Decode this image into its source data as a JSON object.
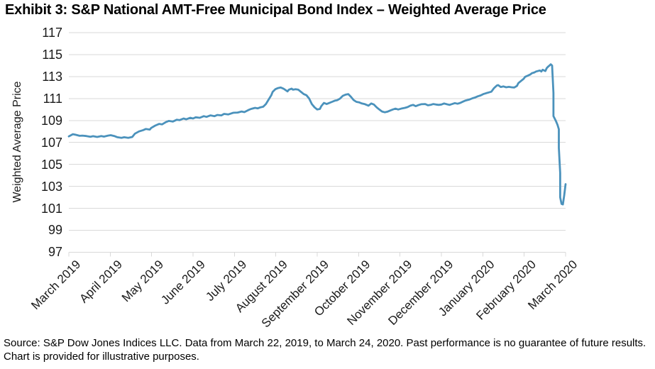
{
  "title": "Exhibit 3: S&P National AMT-Free Municipal Bond Index – Weighted Average Price",
  "footer": "Source: S&P Dow Jones Indices LLC. Data from March 22, 2019, to March 24, 2020. Past performance is no guarantee of future results. Chart is provided for illustrative purposes.",
  "chart_data": {
    "type": "line",
    "title": "Exhibit 3: S&P National AMT-Free Municipal Bond Index – Weighted Average Price",
    "xlabel": "",
    "ylabel": "Weighted Average Price",
    "ylim": [
      97,
      117
    ],
    "yticks": [
      117,
      115,
      113,
      111,
      109,
      107,
      105,
      103,
      101,
      99,
      97
    ],
    "x_tick_labels": [
      "March 2019",
      "April 2019",
      "May 2019",
      "June 2019",
      "July 2019",
      "August 2019",
      "September 2019",
      "October 2019",
      "November 2019",
      "December 2019",
      "January 2020",
      "February 2020",
      "March 2020"
    ],
    "grid": "horizontal-only",
    "legend": "none",
    "line_color": "#4B92BC",
    "grid_color": "#D9D9D9",
    "series": [
      {
        "name": "weighted_average_price",
        "dates": [
          "2019-03-22",
          "2019-03-25",
          "2019-03-27",
          "2019-03-30",
          "2019-04-01",
          "2019-04-04",
          "2019-04-07",
          "2019-04-09",
          "2019-04-12",
          "2019-04-15",
          "2019-04-17",
          "2019-04-20",
          "2019-04-22",
          "2019-04-25",
          "2019-04-27",
          "2019-04-30",
          "2019-05-02",
          "2019-05-05",
          "2019-05-08",
          "2019-05-10",
          "2019-05-13",
          "2019-05-16",
          "2019-05-18",
          "2019-05-21",
          "2019-05-22",
          "2019-05-25",
          "2019-05-28",
          "2019-05-30",
          "2019-06-02",
          "2019-06-04",
          "2019-06-07",
          "2019-06-10",
          "2019-06-12",
          "2019-06-15",
          "2019-06-17",
          "2019-06-20",
          "2019-06-22",
          "2019-06-24",
          "2019-06-27",
          "2019-06-30",
          "2019-07-02",
          "2019-07-05",
          "2019-07-08",
          "2019-07-10",
          "2019-07-13",
          "2019-07-15",
          "2019-07-18",
          "2019-07-21",
          "2019-07-22",
          "2019-07-25",
          "2019-07-28",
          "2019-07-30",
          "2019-08-02",
          "2019-08-04",
          "2019-08-07",
          "2019-08-09",
          "2019-08-11",
          "2019-08-13",
          "2019-08-15",
          "2019-08-17",
          "2019-08-19",
          "2019-08-20",
          "2019-08-22",
          "2019-08-24",
          "2019-08-26",
          "2019-08-28",
          "2019-08-31",
          "2019-09-01",
          "2019-09-03",
          "2019-09-04",
          "2019-09-06",
          "2019-09-08",
          "2019-09-10",
          "2019-09-12",
          "2019-09-14",
          "2019-09-16",
          "2019-09-18",
          "2019-09-20",
          "2019-09-22",
          "2019-09-24",
          "2019-09-25",
          "2019-09-27",
          "2019-09-29",
          "2019-09-30",
          "2019-10-03",
          "2019-10-05",
          "2019-10-07",
          "2019-10-09",
          "2019-10-11",
          "2019-10-13",
          "2019-10-15",
          "2019-10-17",
          "2019-10-19",
          "2019-10-21",
          "2019-10-23",
          "2019-10-25",
          "2019-10-27",
          "2019-10-30",
          "2019-11-01",
          "2019-11-03",
          "2019-11-05",
          "2019-11-07",
          "2019-11-09",
          "2019-11-11",
          "2019-11-13",
          "2019-11-15",
          "2019-11-17",
          "2019-11-19",
          "2019-11-21",
          "2019-11-24",
          "2019-11-26",
          "2019-11-28",
          "2019-11-30",
          "2019-12-02",
          "2019-12-04",
          "2019-12-06",
          "2019-12-08",
          "2019-12-11",
          "2019-12-13",
          "2019-12-15",
          "2019-12-17",
          "2019-12-19",
          "2019-12-21",
          "2019-12-23",
          "2019-12-25",
          "2019-12-27",
          "2019-12-29",
          "2019-12-31",
          "2020-01-02",
          "2020-01-04",
          "2020-01-06",
          "2020-01-08",
          "2020-01-10",
          "2020-01-13",
          "2020-01-15",
          "2020-01-17",
          "2020-01-19",
          "2020-01-21",
          "2020-01-23",
          "2020-01-25",
          "2020-01-27",
          "2020-01-29",
          "2020-01-31",
          "2020-02-02",
          "2020-02-03",
          "2020-02-05",
          "2020-02-07",
          "2020-02-09",
          "2020-02-11",
          "2020-02-13",
          "2020-02-15",
          "2020-02-17",
          "2020-02-18",
          "2020-02-20",
          "2020-02-22",
          "2020-02-23",
          "2020-02-25",
          "2020-02-27",
          "2020-02-28",
          "2020-03-01",
          "2020-03-02",
          "2020-03-04",
          "2020-03-05",
          "2020-03-06",
          "2020-03-07",
          "2020-03-09",
          "2020-03-10",
          "2020-03-11",
          "2020-03-12",
          "2020-03-13",
          "2020-03-14",
          "2020-03-15",
          "2020-03-15",
          "2020-03-16",
          "2020-03-17",
          "2020-03-18",
          "2020-03-19",
          "2020-03-19",
          "2020-03-20",
          "2020-03-20",
          "2020-03-21",
          "2020-03-22",
          "2020-03-23",
          "2020-03-24"
        ],
        "values": [
          107.55,
          107.75,
          107.7,
          107.6,
          107.62,
          107.58,
          107.52,
          107.57,
          107.5,
          107.58,
          107.53,
          107.62,
          107.66,
          107.57,
          107.47,
          107.42,
          107.47,
          107.42,
          107.5,
          107.8,
          108.0,
          108.12,
          108.22,
          108.17,
          108.32,
          108.53,
          108.69,
          108.64,
          108.86,
          108.96,
          108.9,
          109.07,
          109.03,
          109.18,
          109.11,
          109.24,
          109.18,
          109.29,
          109.24,
          109.39,
          109.33,
          109.46,
          109.39,
          109.5,
          109.46,
          109.6,
          109.55,
          109.67,
          109.7,
          109.72,
          109.82,
          109.76,
          109.95,
          110.05,
          110.15,
          110.1,
          110.2,
          110.25,
          110.5,
          110.9,
          111.3,
          111.6,
          111.85,
          111.95,
          112.0,
          111.9,
          111.65,
          111.8,
          111.9,
          111.8,
          111.85,
          111.8,
          111.6,
          111.4,
          111.3,
          111.0,
          110.5,
          110.2,
          110.0,
          110.05,
          110.3,
          110.6,
          110.5,
          110.55,
          110.7,
          110.8,
          110.85,
          111.0,
          111.25,
          111.35,
          111.4,
          111.15,
          110.85,
          110.7,
          110.65,
          110.55,
          110.5,
          110.35,
          110.55,
          110.45,
          110.2,
          110.0,
          109.82,
          109.75,
          109.8,
          109.9,
          110.0,
          110.08,
          110.0,
          110.1,
          110.15,
          110.22,
          110.35,
          110.42,
          110.3,
          110.4,
          110.48,
          110.5,
          110.38,
          110.42,
          110.5,
          110.45,
          110.42,
          110.45,
          110.55,
          110.48,
          110.42,
          110.5,
          110.58,
          110.52,
          110.6,
          110.72,
          110.82,
          110.92,
          111.02,
          111.1,
          111.2,
          111.28,
          111.4,
          111.48,
          111.55,
          111.62,
          111.95,
          112.18,
          112.22,
          112.05,
          112.1,
          112.02,
          112.06,
          112.02,
          112.0,
          112.15,
          112.4,
          112.6,
          112.8,
          112.97,
          113.08,
          113.2,
          113.3,
          113.38,
          113.46,
          113.52,
          113.55,
          113.46,
          113.62,
          113.5,
          113.77,
          113.9,
          114.0,
          114.12,
          114.0,
          111.5,
          109.4,
          109.15,
          108.9,
          108.6,
          108.2,
          106.5,
          104.2,
          102.0,
          101.4,
          101.35,
          102.2,
          103.2
        ]
      }
    ]
  }
}
